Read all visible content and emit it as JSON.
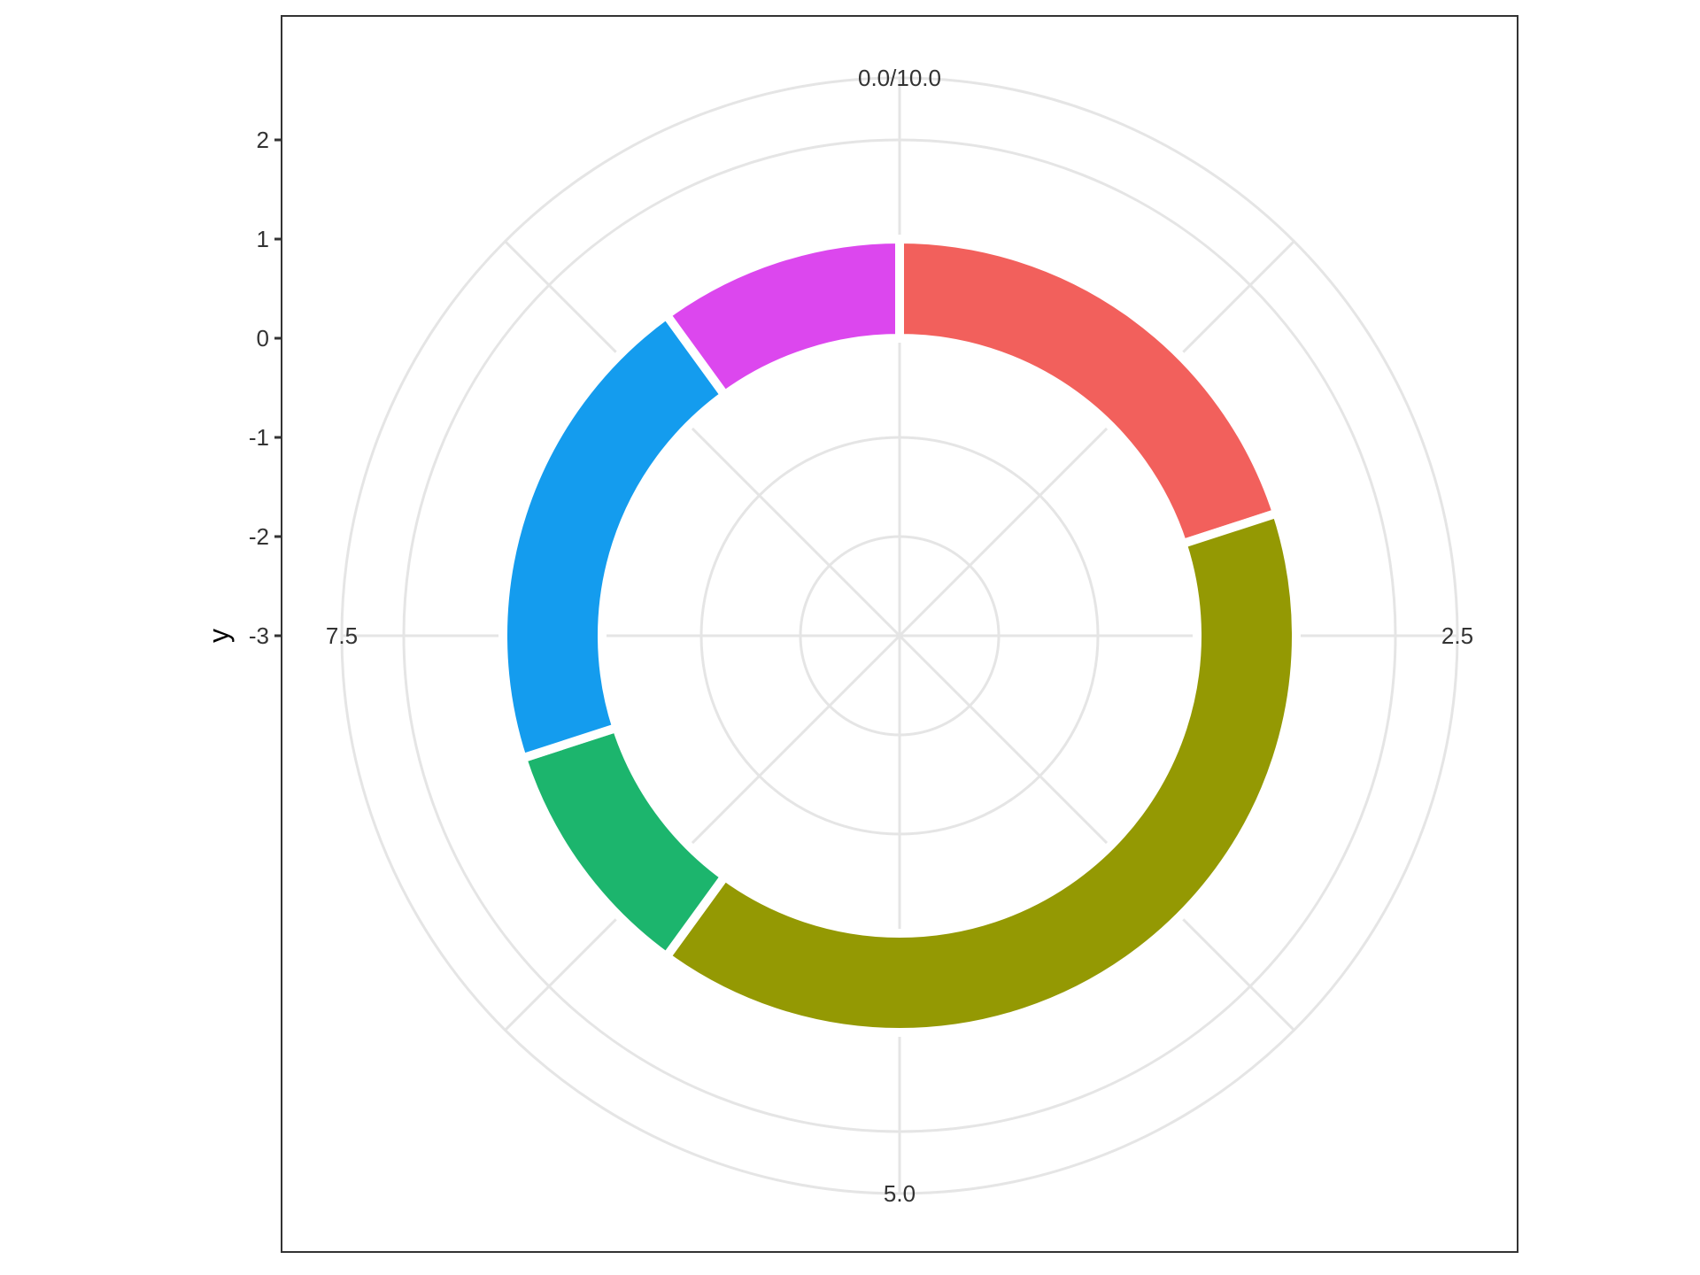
{
  "chart_data": {
    "type": "pie",
    "subtype": "polar-bar-donut",
    "title": "",
    "xlabel": "",
    "ylabel": "y",
    "theta_range": [
      0,
      10
    ],
    "theta_ticks": [
      "0.0/10.0",
      "2.5",
      "5.0",
      "7.5"
    ],
    "r_range": [
      -3,
      2
    ],
    "y_ticks": [
      "2",
      "1",
      "0",
      "-1",
      "-2",
      "-3"
    ],
    "bar_inner_radius": 0.0,
    "bar_outer_radius": 1.0,
    "slices": [
      {
        "start": 0.0,
        "end": 2.0,
        "color": "#F2605C"
      },
      {
        "start": 2.0,
        "end": 6.0,
        "color": "#949903"
      },
      {
        "start": 6.0,
        "end": 7.0,
        "color": "#1CB56D"
      },
      {
        "start": 7.0,
        "end": 9.0,
        "color": "#149CEE"
      },
      {
        "start": 9.0,
        "end": 10.0,
        "color": "#DC47EE"
      }
    ],
    "grid": true,
    "legend": "none"
  }
}
